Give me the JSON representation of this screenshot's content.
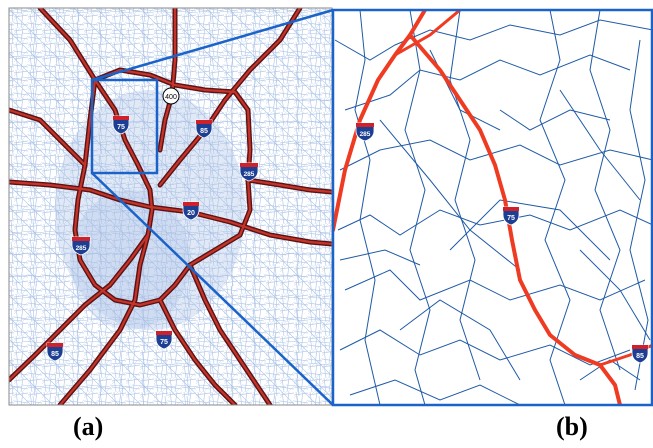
{
  "figure": {
    "panel_a_label": "(a)",
    "panel_b_label": "(b)"
  },
  "shields": {
    "interstate_75": "75",
    "interstate_85": "85",
    "interstate_285": "285",
    "interstate_20": "20",
    "state_route_400": "400"
  },
  "colors": {
    "local_roads_overview": "#a9c1e6",
    "local_roads_zoom": "#1f5aa6",
    "highway_overview": "#7a1f1f",
    "highway_zoom": "#ef3b22",
    "inset_frame": "#1a63c9",
    "shield_blue": "#1c3f94",
    "shield_red": "#d0202a"
  },
  "icons": [
    "interstate-shield-icon",
    "state-route-circle-icon"
  ]
}
